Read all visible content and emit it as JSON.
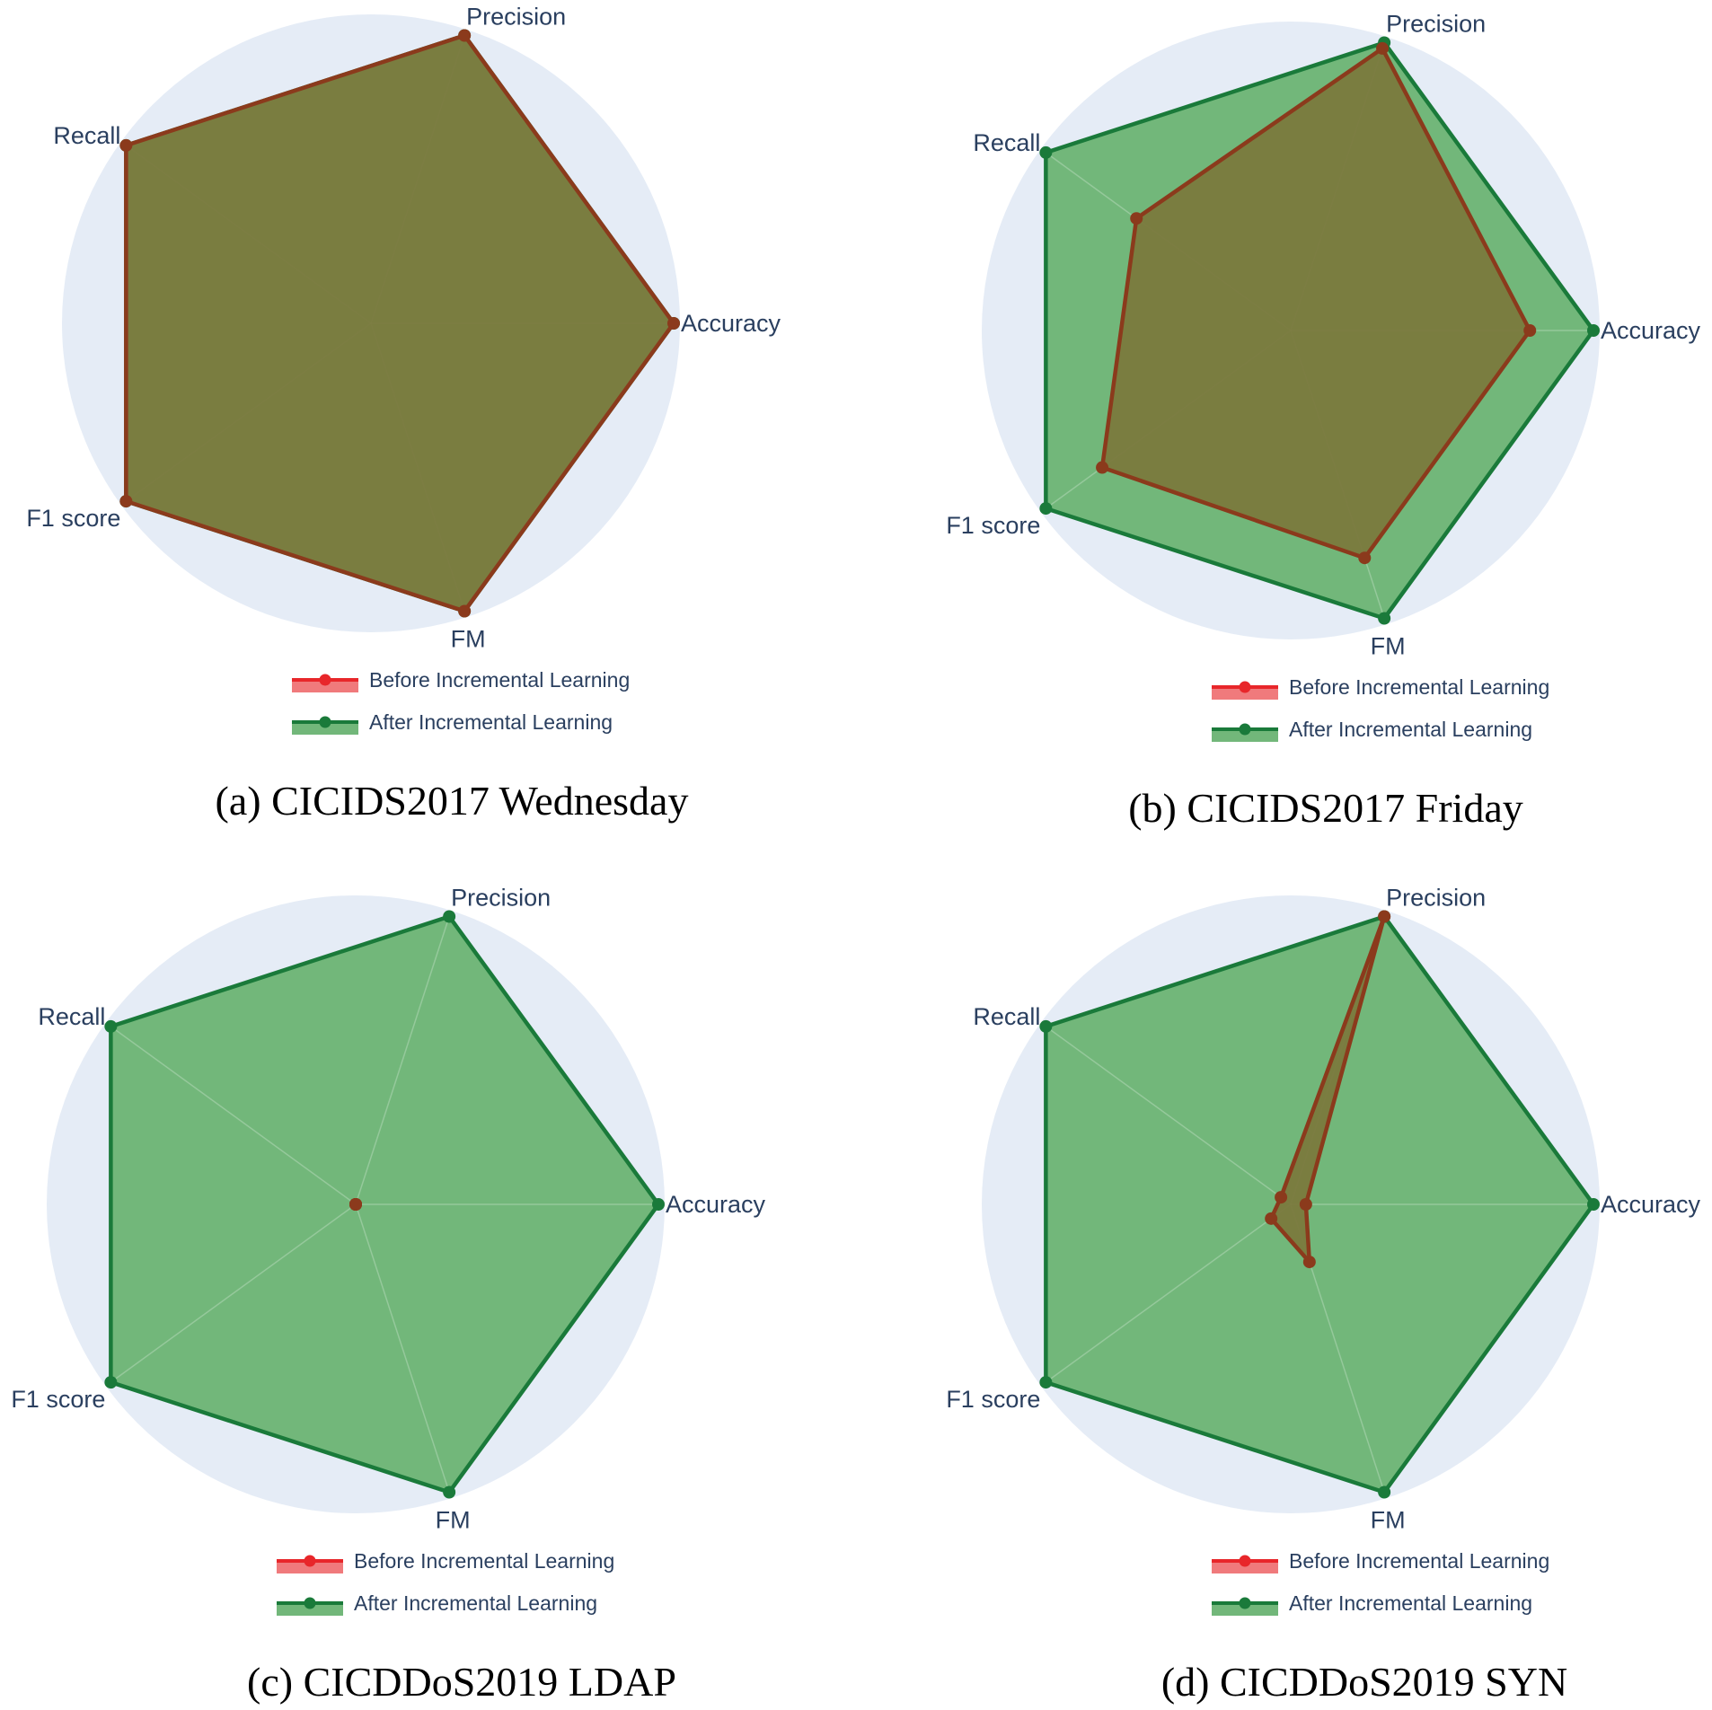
{
  "chart_data": [
    {
      "type": "radar",
      "title": "(a) CICIDS2017 Wednesday",
      "categories": [
        "Accuracy",
        "Precision",
        "Recall",
        "F1 score",
        "FM"
      ],
      "range": [
        0,
        1
      ],
      "series": [
        {
          "name": "Before Incremental Learning",
          "values": [
            1.0,
            1.0,
            1.0,
            1.0,
            1.0
          ]
        },
        {
          "name": "After Incremental Learning",
          "values": [
            1.0,
            1.0,
            1.0,
            1.0,
            1.0
          ]
        }
      ]
    },
    {
      "type": "radar",
      "title": "(b) CICIDS2017 Friday",
      "categories": [
        "Accuracy",
        "Precision",
        "Recall",
        "F1 score",
        "FM"
      ],
      "range": [
        0,
        1
      ],
      "series": [
        {
          "name": "Before Incremental Learning",
          "values": [
            0.79,
            0.98,
            0.63,
            0.77,
            0.79
          ]
        },
        {
          "name": "After Incremental Learning",
          "values": [
            1.0,
            1.0,
            1.0,
            1.0,
            1.0
          ]
        }
      ]
    },
    {
      "type": "radar",
      "title": "(c) CICDDoS2019 LDAP",
      "categories": [
        "Accuracy",
        "Precision",
        "Recall",
        "F1 score",
        "FM"
      ],
      "range": [
        0,
        1
      ],
      "series": [
        {
          "name": "Before Incremental Learning",
          "values": [
            0.0,
            0.0,
            0.0,
            0.0,
            0.0
          ]
        },
        {
          "name": "After Incremental Learning",
          "values": [
            1.0,
            1.0,
            1.0,
            1.0,
            1.0
          ]
        }
      ]
    },
    {
      "type": "radar",
      "title": "(d) CICDDoS2019 SYN",
      "categories": [
        "Accuracy",
        "Precision",
        "Recall",
        "F1 score",
        "FM"
      ],
      "range": [
        0,
        1
      ],
      "series": [
        {
          "name": "Before Incremental Learning",
          "values": [
            0.05,
            1.0,
            0.04,
            0.08,
            0.2
          ]
        },
        {
          "name": "After Incremental Learning",
          "values": [
            1.0,
            1.0,
            1.0,
            1.0,
            1.0
          ]
        }
      ]
    }
  ],
  "colors": {
    "background": "#e5ecf6",
    "before_line": "#8b3a1c",
    "before_fill": "#7a793d",
    "before_legend": "#e8262a",
    "after_line": "#1a7a3a",
    "after_fill": "#72b77a",
    "text": "#2a3f5f"
  }
}
